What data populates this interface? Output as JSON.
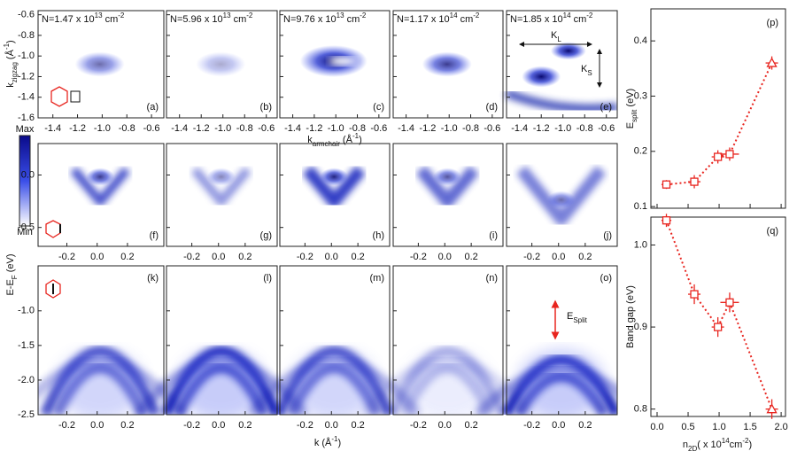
{
  "colorbar": {
    "max": "Max",
    "min": "Min"
  },
  "energy_label": [
    "E-E",
    "F",
    " (eV)"
  ],
  "annotations": {
    "KL": [
      "K",
      "L"
    ],
    "KS": [
      "K",
      "S"
    ],
    "Esplit": [
      "E",
      "Split"
    ]
  },
  "image_rows": [
    {
      "xlim": [
        -1.52,
        -0.5
      ],
      "ylim": [
        -1.6,
        -0.56
      ],
      "xticks": [
        -1.4,
        -1.2,
        {
          "value": -1,
          "label": "-1.0"
        },
        -0.8,
        -0.6
      ],
      "yticks": [
        -0.6,
        -0.8,
        {
          "value": -1,
          "label": "-1.0"
        },
        -1.2,
        -1.4,
        -1.6
      ],
      "ylabel": [
        "k",
        "zigzag",
        " (Å",
        "-1",
        ")"
      ],
      "xlabel": [
        "k",
        "armchair",
        " (Å",
        "-1",
        ")"
      ],
      "panels": [
        {
          "label": "(a)",
          "density": [
            "N=1.47 x 10",
            "13",
            " cm",
            "-2"
          ]
        },
        {
          "label": "(b)",
          "density": [
            "N=5.96 x 10",
            "13",
            " cm",
            "-2"
          ]
        },
        {
          "label": "(c)",
          "density": [
            "N=9.76 x 10",
            "13",
            " cm",
            "-2"
          ]
        },
        {
          "label": "(d)",
          "density": [
            "N=1.17 x 10",
            "14",
            " cm",
            "-2"
          ]
        },
        {
          "label": "(e)",
          "density": [
            "N=1.85 x 10",
            "14",
            " cm",
            "-2"
          ]
        }
      ]
    },
    {
      "xlim": [
        -0.39,
        0.44
      ],
      "ylim": [
        -0.68,
        0.3
      ],
      "xticks": [
        -0.2,
        {
          "value": 0,
          "label": "0.0"
        },
        0.2
      ],
      "yticks": [
        {
          "value": 0,
          "label": "0.0"
        },
        -0.5
      ],
      "panels": [
        {
          "label": "(f)"
        },
        {
          "label": "(g)"
        },
        {
          "label": "(h)"
        },
        {
          "label": "(i)"
        },
        {
          "label": "(j)"
        }
      ]
    },
    {
      "xlim": [
        -0.39,
        0.44
      ],
      "ylim": [
        -2.5,
        -0.35
      ],
      "xticks": [
        -0.2,
        {
          "value": 0,
          "label": "0.0"
        },
        0.2
      ],
      "yticks": [
        {
          "value": -1,
          "label": "-1.0"
        },
        -1.5,
        {
          "value": -2,
          "label": "-2.0"
        },
        -2.5
      ],
      "xlabel": [
        "k (Å",
        "-1",
        ")"
      ],
      "panels": [
        {
          "label": "(k)"
        },
        {
          "label": "(l)"
        },
        {
          "label": "(m)"
        },
        {
          "label": "(n)"
        },
        {
          "label": "(o)"
        }
      ]
    }
  ],
  "chart_data": [
    {
      "type": "scatter",
      "title": "(p)",
      "ylabel": [
        "E",
        "split",
        " (eV)"
      ],
      "color": "#e8251f",
      "x": [
        0.15,
        0.6,
        0.98,
        1.17,
        1.85
      ],
      "values": [
        0.14,
        0.145,
        0.19,
        0.195,
        0.36
      ],
      "xerr": [
        0.08,
        0.1,
        0.1,
        0.15,
        0.1
      ],
      "yerr": [
        0.008,
        0.012,
        0.012,
        0.012,
        0.012
      ],
      "markers": [
        "square",
        "square",
        "square",
        "square",
        "triangle"
      ],
      "xlim": [
        -0.1,
        2.07
      ],
      "ylim": [
        0.097,
        0.458
      ],
      "yticks": [
        0.1,
        0.2,
        0.3,
        0.4
      ]
    },
    {
      "type": "scatter",
      "title": "(q)",
      "ylabel": [
        "Band gap (eV)"
      ],
      "color": "#e8251f",
      "xlabel": [
        "n",
        "2D",
        "( x 10",
        "14",
        "cm",
        "-2",
        ")"
      ],
      "x": [
        0.15,
        0.6,
        0.98,
        1.17,
        1.85
      ],
      "values": [
        1.03,
        0.94,
        0.9,
        0.93,
        0.8
      ],
      "xerr": [
        0.08,
        0.1,
        0.1,
        0.15,
        0.1
      ],
      "yerr": [
        0.008,
        0.012,
        0.012,
        0.012,
        0.012
      ],
      "markers": [
        "square",
        "square",
        "square",
        "square",
        "triangle"
      ],
      "xlim": [
        -0.1,
        2.07
      ],
      "ylim": [
        0.791,
        1.034
      ],
      "xticks": [
        {
          "value": 0,
          "label": "0.0"
        },
        0.5,
        {
          "value": 1,
          "label": "1.0"
        },
        1.5,
        {
          "value": 2,
          "label": "2.0"
        }
      ],
      "yticks": [
        0.8,
        0.9,
        {
          "value": 1,
          "label": "1.0"
        }
      ]
    }
  ]
}
